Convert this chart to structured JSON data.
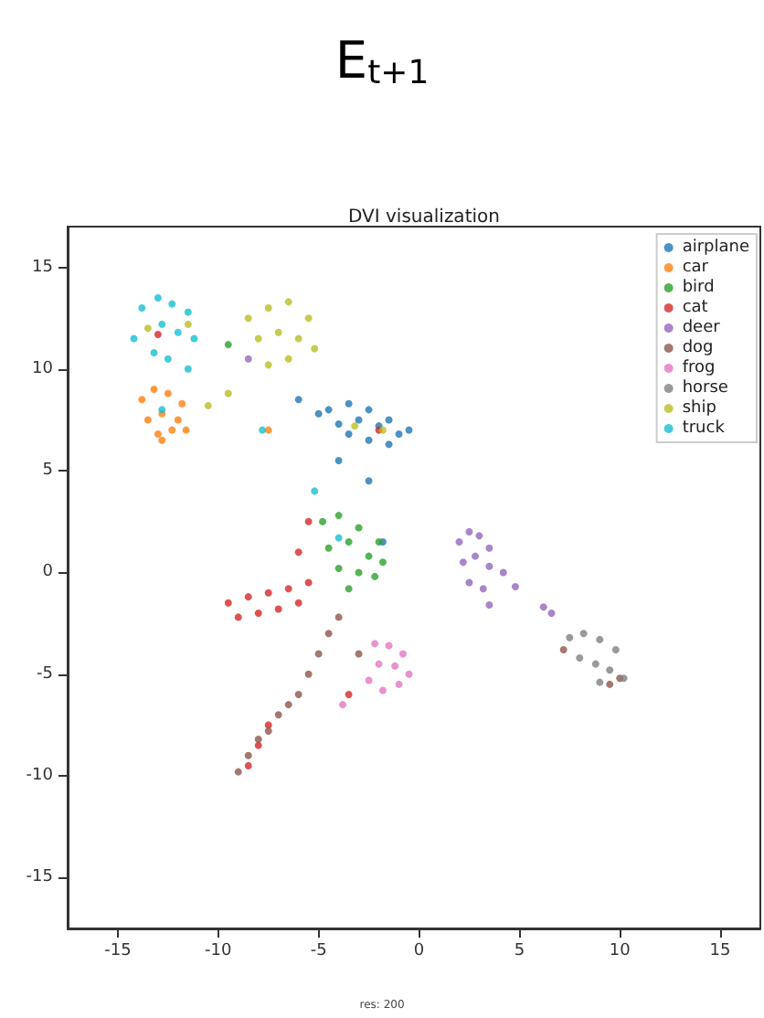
{
  "chart_data": {
    "type": "scatter",
    "title": "E$_{t+1}$",
    "subtitle": "DVI visualization",
    "annotations": [
      "res: 200"
    ],
    "xlim": [
      -17.5,
      17
    ],
    "ylim": [
      -17.5,
      17
    ],
    "xticks": [
      -15,
      -10,
      -5,
      0,
      5,
      10,
      15
    ],
    "yticks": [
      -15,
      -10,
      -5,
      0,
      5,
      10,
      15
    ],
    "grid": false,
    "legend": "top right",
    "marker": "circle",
    "series": [
      {
        "name": "airplane",
        "color": "#1f77b4",
        "x": [
          -4.5,
          -3.5,
          -2.5,
          -1.5,
          -0.5,
          -4,
          -3,
          -2,
          -1,
          -3.5,
          -2.5,
          -1.5,
          -6,
          -5,
          -4,
          -2.5,
          -1.8
        ],
        "values": [
          8,
          8.3,
          8,
          7.5,
          7,
          7.3,
          7.5,
          7.2,
          6.8,
          6.8,
          6.5,
          6.3,
          8.5,
          7.8,
          5.5,
          4.5,
          1.5
        ]
      },
      {
        "name": "car",
        "color": "#ff7f0e",
        "x": [
          -13.8,
          -13.2,
          -12.5,
          -11.8,
          -13.5,
          -12.8,
          -12,
          -13,
          -12.3,
          -11.6,
          -12.8,
          -7.5
        ],
        "values": [
          8.5,
          9,
          8.8,
          8.3,
          7.5,
          7.8,
          7.5,
          6.8,
          7,
          7,
          6.5,
          7
        ]
      },
      {
        "name": "bird",
        "color": "#2ca02c",
        "x": [
          -4.8,
          -4,
          -3,
          -2,
          -4.5,
          -3.5,
          -2.5,
          -1.8,
          -4,
          -3,
          -2.2,
          -3.5,
          -9.5
        ],
        "values": [
          2.5,
          2.8,
          2.2,
          1.5,
          1.2,
          1.5,
          0.8,
          0.5,
          0.2,
          0,
          -0.2,
          -0.8,
          11.2
        ]
      },
      {
        "name": "cat",
        "color": "#d62728",
        "x": [
          -9.5,
          -8.5,
          -7.5,
          -6.5,
          -5.5,
          -9,
          -8,
          -7,
          -6,
          -6,
          -5.5,
          -8.5,
          -8,
          -7.5,
          -3.5,
          -13,
          -2
        ],
        "values": [
          -1.5,
          -1.2,
          -1,
          -0.8,
          -0.5,
          -2.2,
          -2,
          -1.8,
          -1.5,
          1,
          2.5,
          -9.5,
          -8.5,
          -7.5,
          -6,
          11.7,
          7
        ]
      },
      {
        "name": "deer",
        "color": "#9467bd",
        "x": [
          2,
          2.5,
          3,
          3.5,
          2.2,
          2.8,
          3.5,
          4.2,
          2.5,
          3.2,
          4.8,
          3.5,
          6.2,
          6.6,
          -8.5
        ],
        "values": [
          1.5,
          2,
          1.8,
          1.2,
          0.5,
          0.8,
          0.3,
          0,
          -0.5,
          -0.8,
          -0.7,
          -1.6,
          -1.7,
          -2,
          10.5
        ]
      },
      {
        "name": "dog",
        "color": "#8c564b",
        "x": [
          -9,
          -8.5,
          -8,
          -7.5,
          -7,
          -6.5,
          -6,
          -5.5,
          -5,
          -4.5,
          -4,
          -3,
          9.5,
          10,
          7.2
        ],
        "values": [
          -9.8,
          -9,
          -8.2,
          -7.8,
          -7,
          -6.5,
          -6,
          -5,
          -4,
          -3,
          -2.2,
          -4,
          -5.5,
          -5.2,
          -3.8
        ]
      },
      {
        "name": "frog",
        "color": "#e377c2",
        "x": [
          -2.2,
          -1.5,
          -0.8,
          -2,
          -1.2,
          -0.5,
          -2.5,
          -1.8,
          -1,
          -3.8
        ],
        "values": [
          -3.5,
          -3.6,
          -4,
          -4.5,
          -4.6,
          -5,
          -5.3,
          -5.8,
          -5.5,
          -6.5
        ]
      },
      {
        "name": "horse",
        "color": "#7f7f7f",
        "x": [
          7.5,
          8.2,
          9,
          9.8,
          8,
          8.8,
          9.5,
          10.2,
          9
        ],
        "values": [
          -3.2,
          -3,
          -3.3,
          -3.8,
          -4.2,
          -4.5,
          -4.8,
          -5.2,
          -5.4
        ]
      },
      {
        "name": "ship",
        "color": "#bcbd22",
        "x": [
          -8.5,
          -7.5,
          -6.5,
          -5.5,
          -8,
          -7,
          -6,
          -5.2,
          -7.5,
          -6.5,
          -9.5,
          -10.5,
          -3.2,
          -1.8,
          -13.5,
          -11.5
        ],
        "values": [
          12.5,
          13,
          13.3,
          12.5,
          11.5,
          11.8,
          11.5,
          11,
          10.2,
          10.5,
          8.8,
          8.2,
          7.2,
          7,
          12,
          12.2
        ]
      },
      {
        "name": "truck",
        "color": "#17becf",
        "x": [
          -13.8,
          -13,
          -12.3,
          -11.5,
          -14.2,
          -12.8,
          -12,
          -11.2,
          -13.2,
          -12.5,
          -11.5,
          -12.8,
          -5.2,
          -7.8,
          -4
        ],
        "values": [
          13,
          13.5,
          13.2,
          12.8,
          11.5,
          12.2,
          11.8,
          11.5,
          10.8,
          10.5,
          10,
          8,
          4,
          7,
          1.7
        ]
      }
    ]
  }
}
